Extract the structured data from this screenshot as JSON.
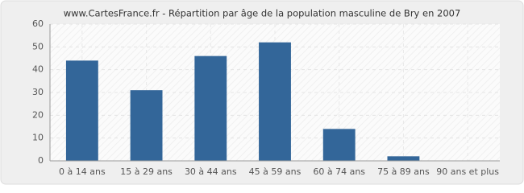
{
  "chart_data": {
    "type": "bar",
    "title": "www.CartesFrance.fr - Répartition par âge de la population masculine de Bry en 2007",
    "categories": [
      "0 à 14 ans",
      "15 à 29 ans",
      "30 à 44 ans",
      "45 à 59 ans",
      "60 à 74 ans",
      "75 à 89 ans",
      "90 ans et plus"
    ],
    "values": [
      44,
      31,
      46,
      52,
      14,
      2,
      0
    ],
    "color": "#336699",
    "ylim": [
      0,
      60
    ],
    "yticks": [
      0,
      10,
      20,
      30,
      40,
      50,
      60
    ],
    "grid": true
  }
}
